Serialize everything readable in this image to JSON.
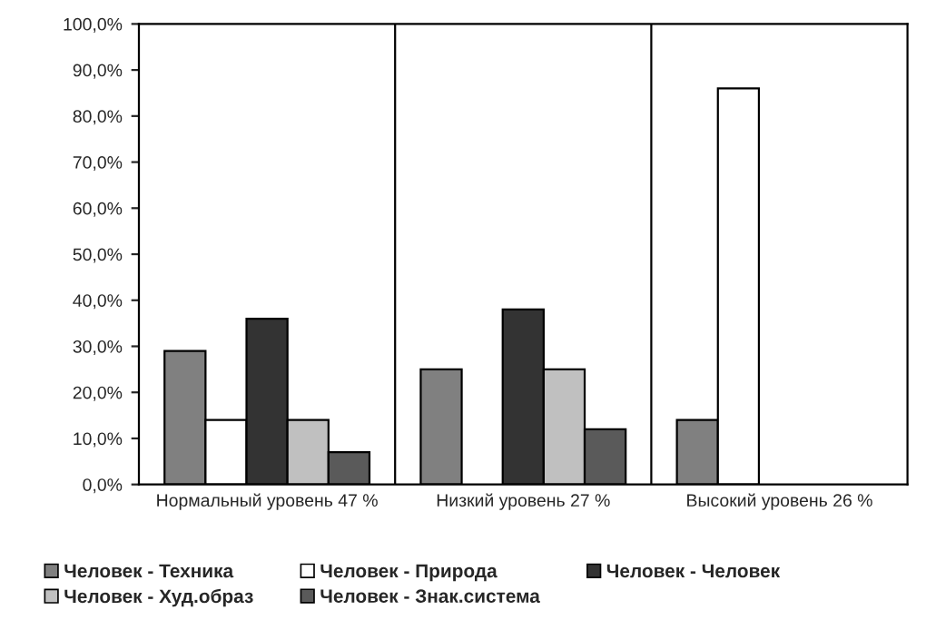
{
  "chart_data": {
    "type": "bar",
    "categories": [
      "Нормальный уровень 47 %",
      "Низкий уровень 27 %",
      "Высокий уровень 26 %"
    ],
    "series": [
      {
        "name": "Человек - Техника",
        "color": "#808080",
        "values": [
          29,
          25,
          14
        ]
      },
      {
        "name": "Человек - Природа",
        "color": "#ffffff",
        "values": [
          14,
          null,
          86
        ]
      },
      {
        "name": "Человек - Человек",
        "color": "#333333",
        "values": [
          36,
          38,
          null
        ]
      },
      {
        "name": "Человек - Худ.образ",
        "color": "#c0c0c0",
        "values": [
          14,
          25,
          null
        ]
      },
      {
        "name": "Человек - Знак.система",
        "color": "#5a5a5a",
        "values": [
          7,
          12,
          null
        ]
      }
    ],
    "ylim": [
      0,
      100
    ],
    "yticks": [
      {
        "value": 0,
        "label": "0,0%"
      },
      {
        "value": 10,
        "label": "10,0%"
      },
      {
        "value": 20,
        "label": "20,0%"
      },
      {
        "value": 30,
        "label": "30,0%"
      },
      {
        "value": 40,
        "label": "40,0%"
      },
      {
        "value": 50,
        "label": "50,0%"
      },
      {
        "value": 60,
        "label": "60,0%"
      },
      {
        "value": 70,
        "label": "70,0%"
      },
      {
        "value": 80,
        "label": "80,0%"
      },
      {
        "value": 90,
        "label": "90,0%"
      },
      {
        "value": 100,
        "label": "100,0%"
      }
    ],
    "grid": "x",
    "legend": "bottom"
  }
}
